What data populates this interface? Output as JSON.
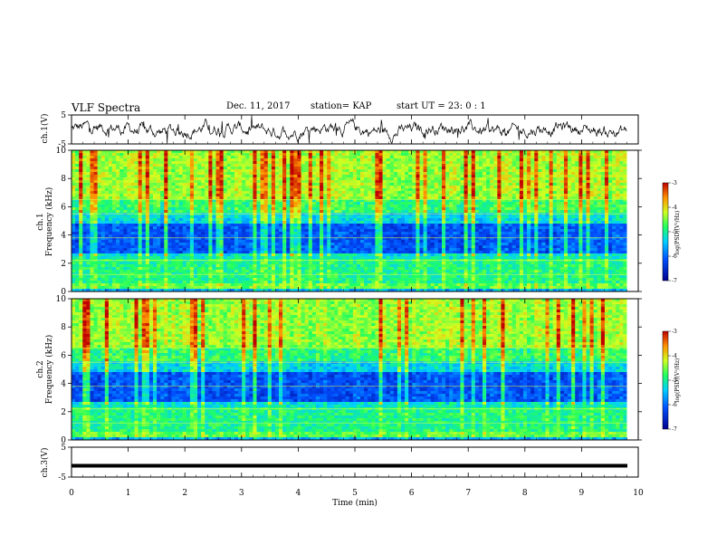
{
  "header": {
    "title": "VLF Spectra",
    "date": "Dec. 11, 2017",
    "station": "station= KAP",
    "start": "start UT =  23: 0  : 1"
  },
  "chart_data": [
    {
      "type": "line",
      "title": "",
      "ylabel": "ch.1(V)",
      "xlim": [
        0,
        10
      ],
      "ylim": [
        -5,
        5
      ],
      "yticks": [
        "5",
        "-5"
      ],
      "description": "waveform"
    },
    {
      "type": "heatmap",
      "ylabel_line1": "ch.1",
      "ylabel_line2": "Frequency (kHz)",
      "xlim": [
        0,
        10
      ],
      "ylim": [
        0,
        10
      ],
      "yticks": [
        "0",
        "2",
        "4",
        "6",
        "8",
        "10"
      ],
      "colorbar": {
        "label": "log(PSD)(V²/Hz)",
        "range": [
          -7,
          -3
        ],
        "ticks": [
          "-3",
          "-4",
          "-5",
          "-6",
          "-7"
        ]
      }
    },
    {
      "type": "heatmap",
      "ylabel_line1": "ch.2",
      "ylabel_line2": "Frequency (kHz)",
      "xlim": [
        0,
        10
      ],
      "ylim": [
        0,
        10
      ],
      "yticks": [
        "0",
        "2",
        "4",
        "6",
        "8",
        "10"
      ],
      "colorbar": {
        "label": "log(PSD)(V²/Hz)",
        "range": [
          -7,
          -3
        ],
        "ticks": [
          "-3",
          "-4",
          "-5",
          "-6",
          "-7"
        ]
      }
    },
    {
      "type": "line",
      "ylabel": "ch.3(V)",
      "xlim": [
        0,
        10
      ],
      "ylim": [
        -5,
        5
      ],
      "yticks": [
        "5",
        "-5"
      ],
      "values_constant": -1.2
    }
  ],
  "xaxis": {
    "label": "Time (min)",
    "ticks": [
      "0",
      "1",
      "2",
      "3",
      "4",
      "5",
      "6",
      "7",
      "8",
      "9",
      "10"
    ]
  }
}
